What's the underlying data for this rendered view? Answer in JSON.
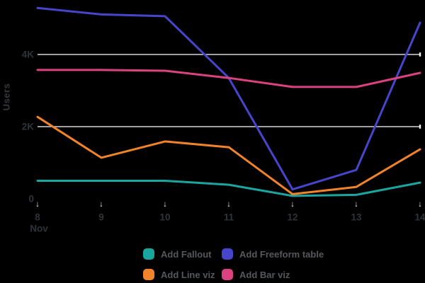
{
  "chart_data": {
    "type": "line",
    "title": "",
    "ylabel": "Users",
    "xlabel_month": "Nov",
    "categories": [
      "8",
      "9",
      "10",
      "11",
      "12",
      "13",
      "14"
    ],
    "yticks": [
      {
        "value": 0,
        "label": "0"
      },
      {
        "value": 2000,
        "label": "2K"
      },
      {
        "value": 4000,
        "label": "4K"
      }
    ],
    "ylim": [
      0,
      5400
    ],
    "grid": "horizontal",
    "legend_position": "bottom",
    "tick_arrow_glyph": "↓",
    "series": [
      {
        "name": "Add Fallout",
        "color": "#1AA69F",
        "values": [
          500,
          500,
          500,
          390,
          80,
          110,
          450
        ]
      },
      {
        "name": "Add Line viz",
        "color": "#F1832B",
        "values": [
          2270,
          1140,
          1590,
          1430,
          130,
          330,
          1370
        ]
      },
      {
        "name": "Add Freeform table",
        "color": "#4745CB",
        "values": [
          5290,
          5110,
          5060,
          3350,
          260,
          800,
          4880
        ]
      },
      {
        "name": "Add Bar viz",
        "color": "#DC4180",
        "values": [
          3570,
          3570,
          3550,
          3350,
          3100,
          3100,
          3490
        ]
      }
    ],
    "legend_order": [
      0,
      2,
      1,
      3
    ]
  },
  "colors": {
    "background": "#000000",
    "gridline": "#D6D6D6",
    "grid_end_tick": "#F2F2F2",
    "axis_text": "#2E3338",
    "ylabel_text": "#34383D",
    "legend_text": "#55585C",
    "tick_arrow": "#E8E8E8"
  }
}
